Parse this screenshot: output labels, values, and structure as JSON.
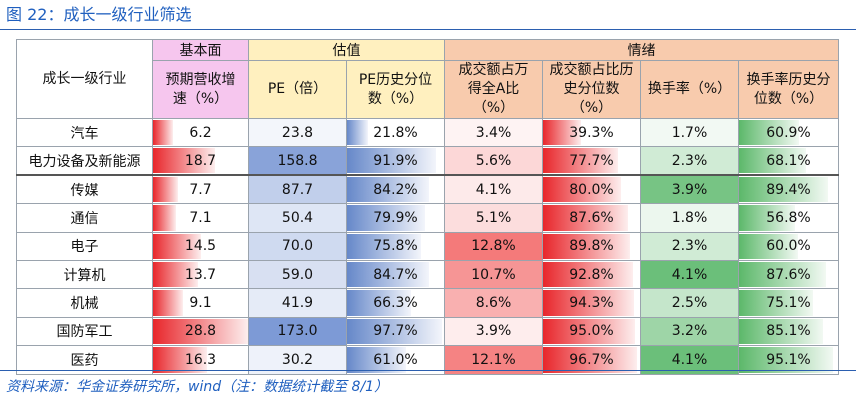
{
  "caption": "图 22：成长一级行业筛选",
  "header": {
    "first_col": "成长一级行业",
    "groups": {
      "fundamental": "基本面",
      "valuation": "估值",
      "sentiment": "情绪"
    },
    "cols": {
      "growth": "预期营收增速（%）",
      "pe": "PE（倍）",
      "pe_pct": "PE历史分位数（%）",
      "vol_share": "成交额占万得全A比（%）",
      "vol_share_pct": "成交额占比历史分位数（%）",
      "turnover": "换手率（%）",
      "turnover_pct": "换手率历史分位数（%）"
    }
  },
  "rows": [
    {
      "name": "汽车",
      "growth": "6.2",
      "pe": "23.8",
      "pe_pct": "21.8%",
      "vol_share": "3.4%",
      "vol_share_pct": "39.3%",
      "turnover": "1.7%",
      "turnover_pct": "60.9%"
    },
    {
      "name": "电力设备及新能源",
      "growth": "18.7",
      "pe": "158.8",
      "pe_pct": "91.9%",
      "vol_share": "5.6%",
      "vol_share_pct": "77.7%",
      "turnover": "2.3%",
      "turnover_pct": "68.1%"
    },
    {
      "name": "传媒",
      "growth": "7.7",
      "pe": "87.7",
      "pe_pct": "84.2%",
      "vol_share": "4.1%",
      "vol_share_pct": "80.0%",
      "turnover": "3.9%",
      "turnover_pct": "89.4%"
    },
    {
      "name": "通信",
      "growth": "7.1",
      "pe": "50.4",
      "pe_pct": "79.9%",
      "vol_share": "5.1%",
      "vol_share_pct": "87.6%",
      "turnover": "1.8%",
      "turnover_pct": "56.8%"
    },
    {
      "name": "电子",
      "growth": "14.5",
      "pe": "70.0",
      "pe_pct": "75.8%",
      "vol_share": "12.8%",
      "vol_share_pct": "89.8%",
      "turnover": "2.3%",
      "turnover_pct": "60.0%"
    },
    {
      "name": "计算机",
      "growth": "13.7",
      "pe": "59.0",
      "pe_pct": "84.7%",
      "vol_share": "10.7%",
      "vol_share_pct": "92.8%",
      "turnover": "4.1%",
      "turnover_pct": "87.6%"
    },
    {
      "name": "机械",
      "growth": "9.1",
      "pe": "41.9",
      "pe_pct": "66.3%",
      "vol_share": "8.6%",
      "vol_share_pct": "94.3%",
      "turnover": "2.5%",
      "turnover_pct": "75.1%"
    },
    {
      "name": "国防军工",
      "growth": "28.8",
      "pe": "173.0",
      "pe_pct": "97.7%",
      "vol_share": "3.9%",
      "vol_share_pct": "95.0%",
      "turnover": "3.2%",
      "turnover_pct": "85.1%"
    },
    {
      "name": "医药",
      "growth": "16.3",
      "pe": "30.2",
      "pe_pct": "61.0%",
      "vol_share": "12.1%",
      "vol_share_pct": "96.7%",
      "turnover": "4.1%",
      "turnover_pct": "95.1%"
    }
  ],
  "footer": "资料来源：华金证券研究所，wind（注：数据统计截至 8/1）",
  "colors": {
    "caption_blue": "#1f5fbf",
    "fundamental_header": "#f6c6ee",
    "valuation_header": "#fff0bf",
    "sentiment_header": "#f8cbad",
    "bar_red": "#e8262b",
    "bar_blue": "#6688c9",
    "bar_green": "#5cb86a",
    "scale_red": "#f36b6b",
    "scale_blue": "#6f8fd1",
    "scale_green": "#5bb86b"
  }
}
